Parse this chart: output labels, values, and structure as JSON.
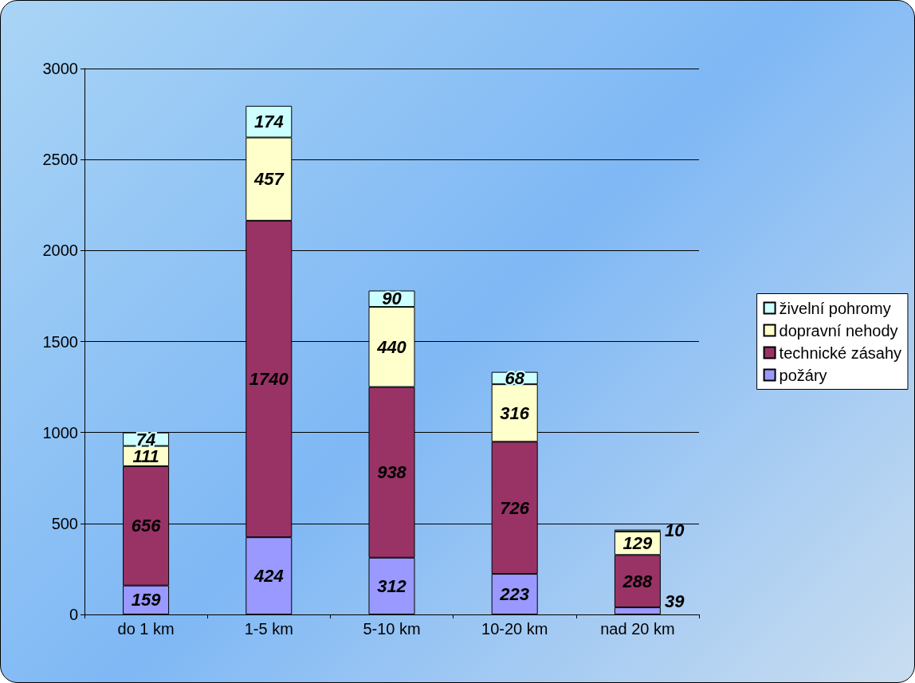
{
  "chart_data": {
    "type": "bar",
    "stacked": true,
    "categories": [
      "do 1 km",
      "1-5 km",
      "5-10 km",
      "10-20 km",
      "nad 20 km"
    ],
    "series": [
      {
        "name": "požáry",
        "color": "#9999ff",
        "values": [
          159,
          424,
          312,
          223,
          39
        ]
      },
      {
        "name": "technické zásahy",
        "color": "#993366",
        "values": [
          656,
          1740,
          938,
          726,
          288
        ]
      },
      {
        "name": "dopravní nehody",
        "color": "#ffffcc",
        "values": [
          111,
          457,
          440,
          316,
          129
        ]
      },
      {
        "name": "živelní pohromy",
        "color": "#ccffff",
        "values": [
          74,
          174,
          90,
          68,
          10
        ]
      }
    ],
    "ylim": [
      0,
      3000
    ],
    "yticks": [
      0,
      500,
      1000,
      1500,
      2000,
      2500,
      3000
    ],
    "grid": "y",
    "legend": "right",
    "data_labels": true
  }
}
